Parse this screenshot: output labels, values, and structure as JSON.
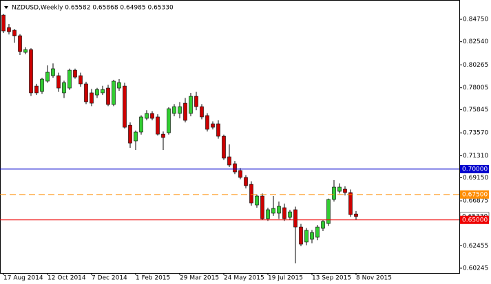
{
  "chart_data": {
    "type": "candlestick",
    "title": "NZDUSD,Weekly 0.65582 0.65868 0.64985 0.65330",
    "categories": [
      "17 Aug 2014",
      null,
      null,
      null,
      null,
      null,
      null,
      null,
      "12 Oct 2014",
      null,
      null,
      null,
      null,
      null,
      null,
      null,
      "7 Dec 2014",
      null,
      null,
      null,
      null,
      null,
      null,
      null,
      "1 Feb 2015",
      null,
      null,
      null,
      null,
      null,
      null,
      null,
      "29 Mar 2015",
      null,
      null,
      null,
      null,
      null,
      null,
      null,
      "24 May 2015",
      null,
      null,
      null,
      null,
      null,
      null,
      null,
      "19 Jul 2015",
      null,
      null,
      null,
      null,
      null,
      null,
      null,
      "13 Sep 2015",
      null,
      null,
      null,
      null,
      null,
      null,
      null,
      "8 Nov 2015"
    ],
    "open": [
      0.8516,
      0.8394,
      0.8367,
      0.8313,
      0.815,
      0.8177,
      0.7818,
      0.7764,
      0.7866,
      0.792,
      0.792,
      0.7751,
      0.7798,
      0.7974,
      0.792,
      0.7839,
      0.7751,
      0.773,
      0.7751,
      0.7798,
      0.7636,
      0.7798,
      0.7818,
      0.7432,
      0.7277,
      0.7365,
      0.75,
      0.7548,
      0.7514,
      0.7344,
      0.7358,
      0.7548,
      0.7548,
      0.7649,
      0.7548,
      0.7717,
      0.7615,
      0.7527,
      0.7446,
      0.7446,
      0.7324,
      0.7121,
      0.7053,
      0.6986,
      0.6918,
      0.685,
      0.6647,
      0.6735,
      0.6512,
      0.6566,
      0.6566,
      0.662,
      0.6525,
      0.66,
      0.643,
      0.6282,
      0.6309,
      0.6329,
      0.6417,
      0.6464,
      0.6701,
      0.6782,
      0.6803,
      0.6769,
      0.65582
    ],
    "high": [
      0.8529,
      0.8428,
      0.838,
      0.833,
      0.82,
      0.819,
      0.784,
      0.79,
      0.8021,
      0.804,
      0.795,
      0.787,
      0.799,
      0.799,
      0.795,
      0.786,
      0.779,
      0.78,
      0.782,
      0.783,
      0.788,
      0.7886,
      0.785,
      0.746,
      0.738,
      0.753,
      0.758,
      0.757,
      0.754,
      0.737,
      0.761,
      0.764,
      0.766,
      0.77,
      0.7751,
      0.776,
      0.764,
      0.755,
      0.747,
      0.748,
      0.734,
      0.7243,
      0.708,
      0.701,
      0.694,
      0.688,
      0.675,
      0.676,
      0.662,
      0.6735,
      0.668,
      0.666,
      0.66,
      0.663,
      0.646,
      0.642,
      0.64,
      0.645,
      0.65,
      0.671,
      0.6891,
      0.686,
      0.683,
      0.68,
      0.65868
    ],
    "low": [
      0.834,
      0.8326,
      0.8245,
      0.8123,
      0.813,
      0.772,
      0.773,
      0.774,
      0.785,
      0.79,
      0.776,
      0.77,
      0.778,
      0.789,
      0.781,
      0.764,
      0.762,
      0.77,
      0.773,
      0.762,
      0.762,
      0.777,
      0.74,
      0.7209,
      0.7189,
      0.734,
      0.748,
      0.748,
      0.733,
      0.7189,
      0.734,
      0.752,
      0.75,
      0.746,
      0.752,
      0.758,
      0.749,
      0.737,
      0.739,
      0.73,
      0.709,
      0.702,
      0.695,
      0.69,
      0.681,
      0.664,
      0.662,
      0.65,
      0.649,
      0.654,
      0.651,
      0.649,
      0.65,
      0.6072,
      0.624,
      0.625,
      0.627,
      0.63,
      0.639,
      0.644,
      0.668,
      0.676,
      0.674,
      0.653,
      0.64985
    ],
    "close": [
      0.836,
      0.8353,
      0.8313,
      0.8157,
      0.8177,
      0.7751,
      0.7751,
      0.7886,
      0.7954,
      0.7988,
      0.7798,
      0.7852,
      0.7974,
      0.7906,
      0.7839,
      0.7663,
      0.7649,
      0.7784,
      0.7784,
      0.7636,
      0.7866,
      0.7852,
      0.7412,
      0.7256,
      0.7365,
      0.7514,
      0.7548,
      0.75,
      0.7344,
      0.7311,
      0.7595,
      0.7615,
      0.7615,
      0.748,
      0.7717,
      0.7615,
      0.7514,
      0.7392,
      0.7412,
      0.7324,
      0.7108,
      0.704,
      0.6972,
      0.6918,
      0.6837,
      0.6667,
      0.6735,
      0.6512,
      0.66,
      0.6613,
      0.6634,
      0.6512,
      0.6579,
      0.643,
      0.6261,
      0.6397,
      0.6376,
      0.643,
      0.6485,
      0.6701,
      0.6823,
      0.6823,
      0.6769,
      0.6552,
      0.6533
    ],
    "up_color": "#32cd32",
    "down_color": "#cc0000",
    "ylim": [
      0.5977,
      0.8665
    ],
    "yticks": [
      {
        "value": 0.8475,
        "label": "0.84750"
      },
      {
        "value": 0.8254,
        "label": "0.82540"
      },
      {
        "value": 0.80265,
        "label": "0.80265"
      },
      {
        "value": 0.78005,
        "label": "0.78005"
      },
      {
        "value": 0.75845,
        "label": "0.75845"
      },
      {
        "value": 0.7357,
        "label": "0.73570"
      },
      {
        "value": 0.7131,
        "label": "0.71310"
      },
      {
        "value": 0.6915,
        "label": "0.69150"
      },
      {
        "value": 0.66875,
        "label": "0.66875"
      },
      {
        "value": 0.62455,
        "label": "0.62455"
      },
      {
        "value": 0.60245,
        "label": "0.60245"
      }
    ],
    "price_label": {
      "value": 0.6533,
      "label": "0.65330"
    },
    "levels": [
      {
        "value": 0.7,
        "label": "0.70000",
        "color": "#0000cd",
        "dashed": false
      },
      {
        "value": 0.675,
        "label": "0.67500",
        "color": "#ff8c00",
        "dashed": true
      },
      {
        "value": 0.65,
        "label": "0.65000",
        "color": "#ee0000",
        "dashed": false
      }
    ]
  }
}
